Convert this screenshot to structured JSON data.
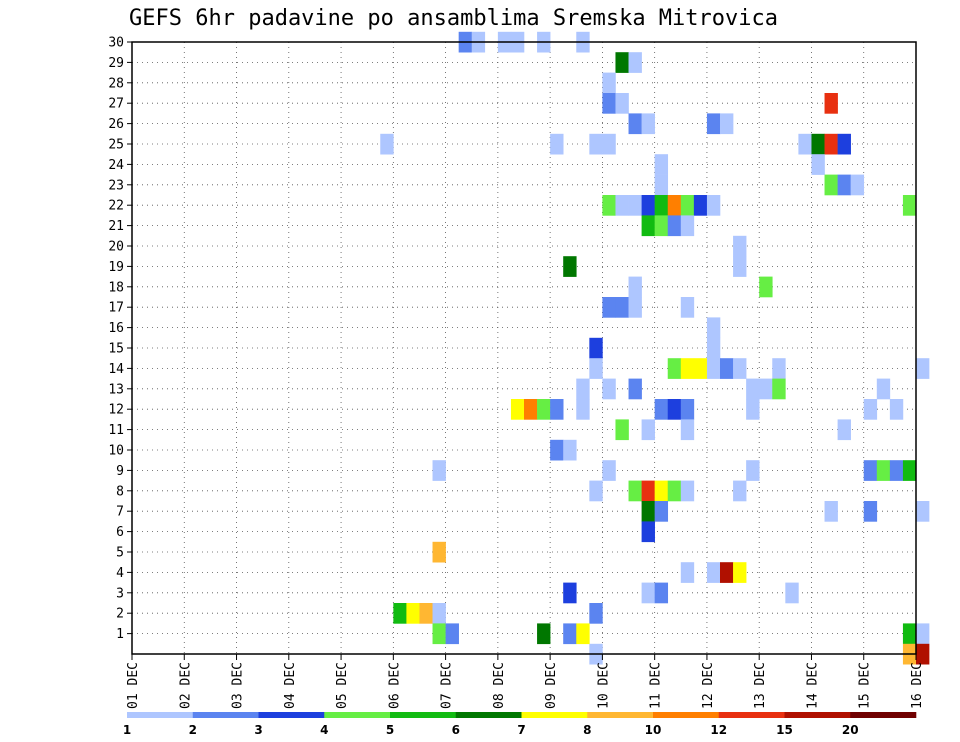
{
  "chart_data": {
    "type": "heatmap",
    "title": "GEFS 6hr padavine po ansamblima Sremska Mitrovica",
    "x_ticks": [
      "01 DEC",
      "02 DEC",
      "03 DEC",
      "04 DEC",
      "05 DEC",
      "06 DEC",
      "07 DEC",
      "08 DEC",
      "09 DEC",
      "10 DEC",
      "11 DEC",
      "12 DEC",
      "13 DEC",
      "14 DEC",
      "15 DEC",
      "16 DEC"
    ],
    "y_ticks": [
      "1",
      "2",
      "3",
      "4",
      "5",
      "6",
      "7",
      "8",
      "9",
      "10",
      "11",
      "12",
      "13",
      "14",
      "15",
      "16",
      "17",
      "18",
      "19",
      "20",
      "21",
      "22",
      "23",
      "24",
      "25",
      "26",
      "27",
      "28",
      "29",
      "30"
    ],
    "x_range": [
      "01 DEC",
      "16 DEC"
    ],
    "y_range": [
      0,
      30
    ],
    "grid": true,
    "legend": {
      "placement": "bottom",
      "labels": [
        "1",
        "2",
        "3",
        "4",
        "5",
        "6",
        "7",
        "8",
        "10",
        "12",
        "15",
        "20"
      ],
      "colors": [
        "#aec6ff",
        "#5b84f0",
        "#1d3fde",
        "#66ee44",
        "#11bb11",
        "#007700",
        "#ffff00",
        "#ffb732",
        "#ff7f00",
        "#e83010",
        "#b01000",
        "#700000"
      ]
    },
    "note": "points: [member, day_index (0 = 01 DEC, 6h steps = 0.25), color_class 0-11]",
    "points": [
      [
        30,
        6.25,
        1
      ],
      [
        30,
        6.5,
        0
      ],
      [
        30,
        7,
        0
      ],
      [
        30,
        7.25,
        0
      ],
      [
        30,
        7.75,
        0
      ],
      [
        30,
        8.5,
        0
      ],
      [
        29,
        9.25,
        5
      ],
      [
        29,
        9.5,
        0
      ],
      [
        28,
        9,
        0
      ],
      [
        27,
        9,
        1
      ],
      [
        27,
        9.25,
        0
      ],
      [
        27,
        13.25,
        9
      ],
      [
        26,
        9.5,
        1
      ],
      [
        26,
        9.75,
        0
      ],
      [
        26,
        11,
        1
      ],
      [
        26,
        11.25,
        0
      ],
      [
        25,
        4.75,
        0
      ],
      [
        25,
        8,
        0
      ],
      [
        25,
        8.75,
        0
      ],
      [
        25,
        9,
        0
      ],
      [
        25,
        12.75,
        0
      ],
      [
        25,
        13,
        5
      ],
      [
        25,
        13.25,
        9
      ],
      [
        25,
        13.5,
        2
      ],
      [
        24,
        10,
        0
      ],
      [
        24,
        13,
        0
      ],
      [
        23,
        10,
        0
      ],
      [
        23,
        13.25,
        3
      ],
      [
        23,
        13.5,
        1
      ],
      [
        23,
        13.75,
        0
      ],
      [
        22,
        9,
        3
      ],
      [
        22,
        9.25,
        0
      ],
      [
        22,
        9.5,
        0
      ],
      [
        22,
        9.75,
        2
      ],
      [
        22,
        10,
        4
      ],
      [
        22,
        10.25,
        8
      ],
      [
        22,
        10.5,
        3
      ],
      [
        22,
        10.75,
        2
      ],
      [
        22,
        11,
        0
      ],
      [
        22,
        14.75,
        3
      ],
      [
        21,
        9.75,
        4
      ],
      [
        21,
        10,
        3
      ],
      [
        21,
        10.25,
        1
      ],
      [
        21,
        10.5,
        0
      ],
      [
        20,
        11.5,
        0
      ],
      [
        19,
        8.25,
        5
      ],
      [
        19,
        11.5,
        0
      ],
      [
        18,
        9.5,
        0
      ],
      [
        18,
        12,
        3
      ],
      [
        17,
        9,
        1
      ],
      [
        17,
        9.25,
        1
      ],
      [
        17,
        9.5,
        0
      ],
      [
        17,
        10.5,
        0
      ],
      [
        16,
        11,
        0
      ],
      [
        15,
        8.75,
        2
      ],
      [
        15,
        11,
        0
      ],
      [
        14,
        8.75,
        0
      ],
      [
        14,
        10.25,
        3
      ],
      [
        14,
        10.5,
        6
      ],
      [
        14,
        10.75,
        6
      ],
      [
        14,
        11,
        0
      ],
      [
        14,
        11.25,
        1
      ],
      [
        14,
        11.5,
        0
      ],
      [
        14,
        12.25,
        0
      ],
      [
        14,
        15,
        0
      ],
      [
        13,
        8.5,
        0
      ],
      [
        13,
        9,
        0
      ],
      [
        13,
        9.5,
        1
      ],
      [
        13,
        11.75,
        0
      ],
      [
        13,
        12,
        0
      ],
      [
        13,
        12.25,
        3
      ],
      [
        13,
        14.25,
        0
      ],
      [
        12,
        7.25,
        6
      ],
      [
        12,
        7.5,
        8
      ],
      [
        12,
        7.75,
        3
      ],
      [
        12,
        8,
        1
      ],
      [
        12,
        8.5,
        0
      ],
      [
        12,
        10,
        1
      ],
      [
        12,
        10.25,
        2
      ],
      [
        12,
        10.5,
        1
      ],
      [
        12,
        11.75,
        0
      ],
      [
        12,
        14,
        0
      ],
      [
        12,
        14.5,
        0
      ],
      [
        11,
        9.25,
        3
      ],
      [
        11,
        9.75,
        0
      ],
      [
        11,
        10.5,
        0
      ],
      [
        11,
        13.5,
        0
      ],
      [
        10,
        8,
        1
      ],
      [
        10,
        8.25,
        0
      ],
      [
        9,
        5.75,
        0
      ],
      [
        9,
        9,
        0
      ],
      [
        9,
        11.75,
        0
      ],
      [
        9,
        14,
        1
      ],
      [
        9,
        14.25,
        3
      ],
      [
        9,
        14.5,
        1
      ],
      [
        9,
        14.75,
        4
      ],
      [
        8,
        8.75,
        0
      ],
      [
        8,
        9.5,
        3
      ],
      [
        8,
        9.75,
        9
      ],
      [
        8,
        10,
        6
      ],
      [
        8,
        10.25,
        3
      ],
      [
        8,
        10.5,
        0
      ],
      [
        8,
        11.5,
        0
      ],
      [
        7,
        9.75,
        5
      ],
      [
        7,
        10,
        1
      ],
      [
        7,
        13.25,
        0
      ],
      [
        7,
        14,
        1
      ],
      [
        7,
        15,
        0
      ],
      [
        6,
        9.75,
        2
      ],
      [
        5,
        5.75,
        7
      ],
      [
        4,
        10.5,
        0
      ],
      [
        4,
        11,
        0
      ],
      [
        4,
        11.25,
        10
      ],
      [
        4,
        11.5,
        6
      ],
      [
        3,
        8.25,
        2
      ],
      [
        3,
        9.75,
        0
      ],
      [
        3,
        10,
        1
      ],
      [
        3,
        12.5,
        0
      ],
      [
        2,
        5,
        4
      ],
      [
        2,
        5.25,
        6
      ],
      [
        2,
        5.5,
        7
      ],
      [
        2,
        5.75,
        0
      ],
      [
        2,
        8.75,
        1
      ],
      [
        1,
        5.75,
        3
      ],
      [
        1,
        6,
        1
      ],
      [
        1,
        7.75,
        5
      ],
      [
        1,
        8.25,
        1
      ],
      [
        1,
        8.5,
        6
      ],
      [
        1,
        14.75,
        4
      ],
      [
        1,
        15,
        0
      ],
      [
        0,
        8.75,
        0
      ],
      [
        0,
        14.75,
        7
      ],
      [
        0,
        15,
        10
      ]
    ]
  }
}
